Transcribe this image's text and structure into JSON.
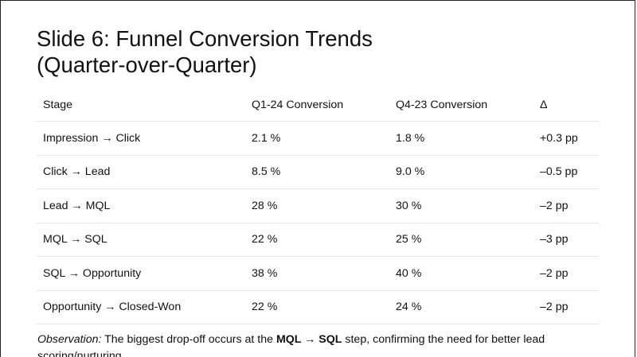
{
  "slide": {
    "title_line1": "Slide 6: Funnel Conversion Trends",
    "title_line2": "(Quarter-over-Quarter)"
  },
  "table": {
    "headers": [
      "Stage",
      "Q1-24 Conversion",
      "Q4-23 Conversion",
      "Δ"
    ],
    "rows": [
      [
        "Impression → Click",
        "2.1 %",
        "1.8 %",
        "+0.3 pp"
      ],
      [
        "Click → Lead",
        "8.5 %",
        "9.0 %",
        "–0.5 pp"
      ],
      [
        "Lead → MQL",
        "28 %",
        "30 %",
        "–2 pp"
      ],
      [
        "MQL → SQL",
        "22 %",
        "25 %",
        "–3 pp"
      ],
      [
        "SQL → Opportunity",
        "38 %",
        "40 %",
        "–2 pp"
      ],
      [
        "Opportunity → Closed-Won",
        "22 %",
        "24 %",
        "–2 pp"
      ]
    ]
  },
  "observation": {
    "label": "Observation:",
    "text_before": " The biggest drop-off occurs at the ",
    "highlight": "MQL → SQL",
    "text_after": " step, confirming the need for better lead scoring/nurturing."
  }
}
